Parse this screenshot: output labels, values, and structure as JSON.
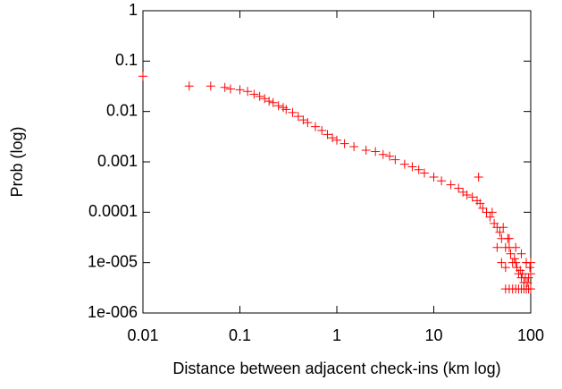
{
  "chart_data": {
    "type": "scatter",
    "xlabel": "Distance between adjacent check-ins (km log)",
    "ylabel": "Prob (log)",
    "xscale": "log",
    "yscale": "log",
    "color": "#ff0000",
    "xlim": [
      0.01,
      100
    ],
    "ylim": [
      1e-06,
      1
    ],
    "xticks": [
      0.01,
      0.1,
      1,
      10,
      100
    ],
    "yticks": [
      {
        "value": 1e-06,
        "label": "1e-006"
      },
      {
        "value": 1e-05,
        "label": "1e-005"
      },
      0.0001,
      0.001,
      0.01,
      0.1,
      1
    ],
    "x": [
      0.01,
      0.03,
      0.05,
      0.07,
      0.08,
      0.1,
      0.12,
      0.14,
      0.16,
      0.18,
      0.2,
      0.22,
      0.25,
      0.28,
      0.3,
      0.35,
      0.4,
      0.45,
      0.5,
      0.6,
      0.7,
      0.8,
      0.9,
      1,
      1.2,
      1.5,
      2,
      2.5,
      3,
      3.5,
      4,
      5,
      6,
      7,
      8,
      10,
      12,
      15,
      18,
      20,
      22,
      25,
      28,
      29,
      30,
      32,
      35,
      38,
      40,
      42,
      45,
      48,
      50,
      52,
      55,
      58,
      60,
      62,
      65,
      68,
      70,
      72,
      75,
      78,
      80,
      82,
      85,
      88,
      90,
      92,
      95,
      98,
      100,
      55,
      60,
      65,
      70,
      75,
      80,
      85,
      90,
      95,
      100,
      45,
      50,
      55,
      60,
      70,
      80,
      90,
      100
    ],
    "values": [
      0.05,
      0.032,
      0.032,
      0.03,
      0.028,
      0.027,
      0.025,
      0.022,
      0.02,
      0.018,
      0.016,
      0.015,
      0.013,
      0.012,
      0.011,
      0.0095,
      0.008,
      0.0068,
      0.006,
      0.005,
      0.0042,
      0.0035,
      0.003,
      0.0027,
      0.0023,
      0.002,
      0.0017,
      0.0016,
      0.0014,
      0.0013,
      0.0011,
      0.0009,
      0.0008,
      0.0007,
      0.0006,
      0.0005,
      0.00042,
      0.00035,
      0.0003,
      0.00025,
      0.00022,
      0.0002,
      0.00017,
      0.0005,
      0.00015,
      0.00012,
      0.0001,
      8e-05,
      0.0001,
      6e-05,
      5e-05,
      4e-05,
      3e-05,
      5e-05,
      2e-05,
      3e-05,
      2e-05,
      1.5e-05,
      1e-05,
      1.2e-05,
      1e-05,
      8e-06,
      6e-06,
      7e-06,
      5e-06,
      6e-06,
      4e-06,
      5e-06,
      3e-06,
      4e-06,
      5e-06,
      8e-06,
      6e-06,
      3e-06,
      3e-06,
      3e-06,
      3e-06,
      3e-06,
      3e-06,
      3e-06,
      3e-06,
      3e-06,
      3e-06,
      2e-05,
      1e-05,
      8e-06,
      3e-05,
      2e-05,
      1.5e-05,
      1e-05,
      1e-05
    ]
  }
}
